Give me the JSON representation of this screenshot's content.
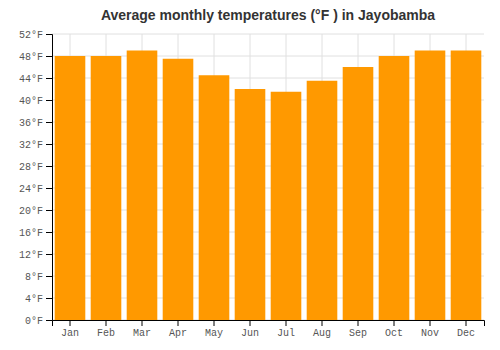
{
  "chart_data": {
    "type": "bar",
    "title": "Average monthly temperatures (°F ) in Jayobamba",
    "categories": [
      "Jan",
      "Feb",
      "Mar",
      "Apr",
      "May",
      "Jun",
      "Jul",
      "Aug",
      "Sep",
      "Oct",
      "Nov",
      "Dec"
    ],
    "values": [
      48.0,
      48.0,
      49.0,
      47.5,
      44.5,
      42.0,
      41.5,
      43.5,
      46.0,
      48.0,
      49.0,
      49.0
    ],
    "color": "#FF9900",
    "ylim": [
      0,
      52
    ],
    "yticks": [
      {
        "value": 0,
        "label": "0°F"
      },
      {
        "value": 4,
        "label": "4°F"
      },
      {
        "value": 8,
        "label": "8°F"
      },
      {
        "value": 12,
        "label": "12°F"
      },
      {
        "value": 16,
        "label": "16°F"
      },
      {
        "value": 20,
        "label": "20°F"
      },
      {
        "value": 24,
        "label": "24°F"
      },
      {
        "value": 28,
        "label": "28°F"
      },
      {
        "value": 32,
        "label": "32°F"
      },
      {
        "value": 36,
        "label": "36°F"
      },
      {
        "value": 40,
        "label": "40°F"
      },
      {
        "value": 44,
        "label": "44°F"
      },
      {
        "value": 48,
        "label": "48°F"
      },
      {
        "value": 52,
        "label": "52°F"
      }
    ],
    "grid": true
  }
}
